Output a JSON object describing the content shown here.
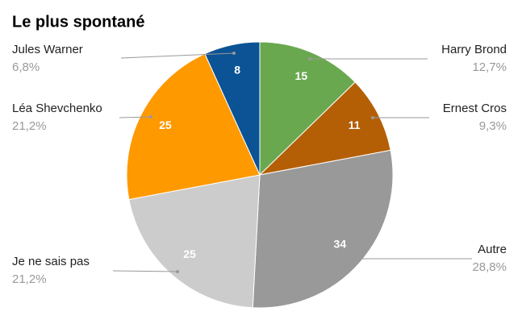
{
  "chart_data": {
    "type": "pie",
    "title": "Le plus spontané",
    "categories": [
      "Harry Brond",
      "Ernest Cros",
      "Autre",
      "Je ne sais pas",
      "Léa Shevchenko",
      "Jules Warner"
    ],
    "values": [
      15,
      11,
      34,
      25,
      25,
      8
    ],
    "percent_labels": [
      "12,7%",
      "9,3%",
      "28,8%",
      "21,2%",
      "21,2%",
      "6,8%"
    ],
    "colors": [
      "#6aa84f",
      "#b45f06",
      "#999999",
      "#cccccc",
      "#ff9900",
      "#0b5394"
    ]
  }
}
